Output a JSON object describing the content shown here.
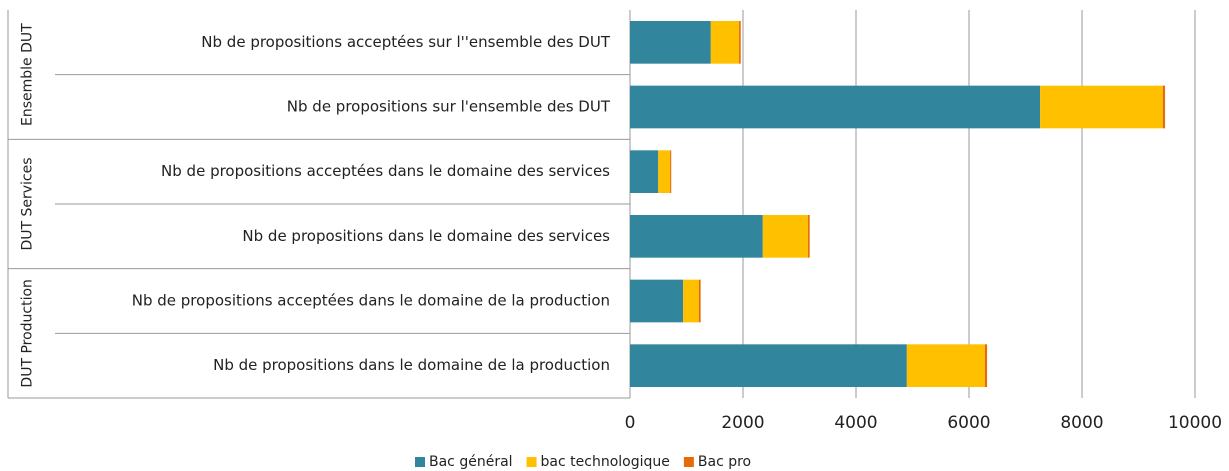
{
  "chart_data": {
    "type": "bar",
    "orientation": "horizontal",
    "stacked": true,
    "groups": [
      {
        "label": "Ensemble DUT",
        "categories": [
          "Nb de propositions acceptées sur l''ensemble des DUT",
          "Nb de propositions sur l'ensemble des DUT"
        ]
      },
      {
        "label": "DUT Services",
        "categories": [
          "Nb de propositions acceptées dans le domaine des services",
          "Nb de propositions dans le domaine des services"
        ]
      },
      {
        "label": "DUT Production",
        "categories": [
          "Nb de propositions acceptées dans le domaine de la production",
          "Nb de propositions dans le domaine de la production"
        ]
      }
    ],
    "series": [
      {
        "name": "Bac général",
        "color": "#31859c",
        "values": [
          1430,
          7260,
          500,
          2350,
          940,
          4900
        ]
      },
      {
        "name": "bac technologique",
        "color": "#ffc000",
        "values": [
          500,
          2170,
          210,
          800,
          280,
          1380
        ]
      },
      {
        "name": "Bac pro",
        "color": "#e46c0a",
        "values": [
          30,
          40,
          20,
          30,
          30,
          40
        ]
      }
    ],
    "xlim": [
      0,
      10000
    ],
    "xticks": [
      0,
      2000,
      4000,
      6000,
      8000,
      10000
    ],
    "grid": true,
    "legend": "bottom"
  }
}
